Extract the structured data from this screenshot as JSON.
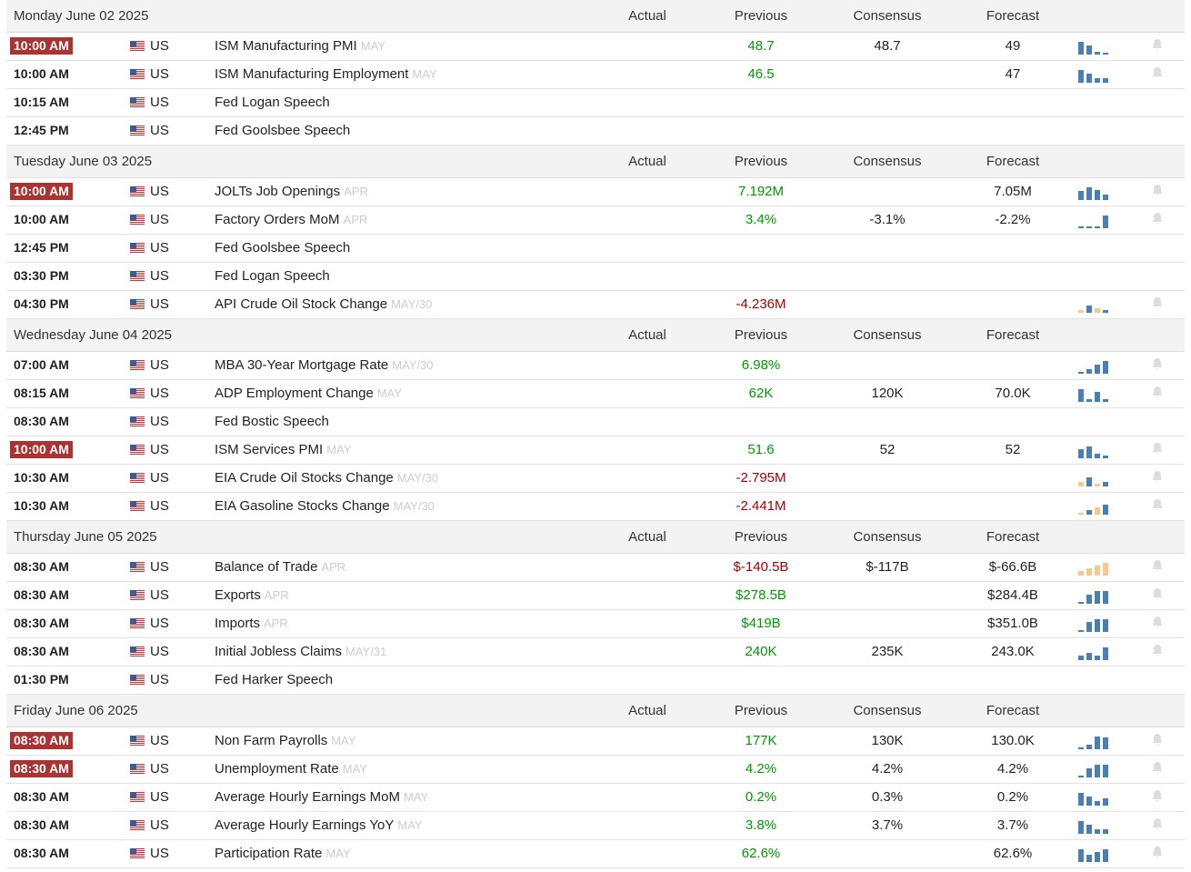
{
  "columns": {
    "actual": "Actual",
    "previous": "Previous",
    "consensus": "Consensus",
    "forecast": "Forecast"
  },
  "colors": {
    "highlight_time": "#a33333",
    "positive": "#009900",
    "negative": "#aa0000",
    "spark_blue": "#4a7fb5",
    "spark_orange": "#f5c98a"
  },
  "days": [
    {
      "date": "Monday June 02 2025",
      "events": [
        {
          "time": "10:00 AM",
          "hl": true,
          "country": "US",
          "event": "ISM Manufacturing PMI",
          "ref": "MAY",
          "actual": "",
          "previous": "48.7",
          "prev_class": "pos",
          "consensus": "48.7",
          "forecast": "49",
          "spark": "blue",
          "bars": [
            0.9,
            0.6,
            0.2,
            0.1
          ],
          "bell": true
        },
        {
          "time": "10:00 AM",
          "hl": false,
          "country": "US",
          "event": "ISM Manufacturing Employment",
          "ref": "MAY",
          "actual": "",
          "previous": "46.5",
          "prev_class": "pos",
          "consensus": "",
          "forecast": "47",
          "spark": "blue",
          "bars": [
            0.9,
            0.6,
            0.3,
            0.3
          ],
          "bell": true
        },
        {
          "time": "10:15 AM",
          "hl": false,
          "country": "US",
          "event": "Fed Logan Speech",
          "ref": "",
          "actual": "",
          "previous": "",
          "prev_class": "",
          "consensus": "",
          "forecast": "",
          "spark": "",
          "bars": [],
          "bell": false
        },
        {
          "time": "12:45 PM",
          "hl": false,
          "country": "US",
          "event": "Fed Goolsbee Speech",
          "ref": "",
          "actual": "",
          "previous": "",
          "prev_class": "",
          "consensus": "",
          "forecast": "",
          "spark": "",
          "bars": [],
          "bell": false
        }
      ]
    },
    {
      "date": "Tuesday June 03 2025",
      "events": [
        {
          "time": "10:00 AM",
          "hl": true,
          "country": "US",
          "event": "JOLTs Job Openings",
          "ref": "APR",
          "actual": "",
          "previous": "7.192M",
          "prev_class": "pos",
          "consensus": "",
          "forecast": "7.05M",
          "spark": "blue",
          "bars": [
            0.6,
            0.9,
            0.7,
            0.4
          ],
          "bell": true
        },
        {
          "time": "10:00 AM",
          "hl": false,
          "country": "US",
          "event": "Factory Orders MoM",
          "ref": "APR",
          "actual": "",
          "previous": "3.4%",
          "prev_class": "pos",
          "consensus": "-3.1%",
          "forecast": "-2.2%",
          "spark": "blue",
          "bars": [
            0.1,
            0.1,
            0.1,
            0.9
          ],
          "bell": true
        },
        {
          "time": "12:45 PM",
          "hl": false,
          "country": "US",
          "event": "Fed Goolsbee Speech",
          "ref": "",
          "actual": "",
          "previous": "",
          "prev_class": "",
          "consensus": "",
          "forecast": "",
          "spark": "",
          "bars": [],
          "bell": false
        },
        {
          "time": "03:30 PM",
          "hl": false,
          "country": "US",
          "event": "Fed Logan Speech",
          "ref": "",
          "actual": "",
          "previous": "",
          "prev_class": "",
          "consensus": "",
          "forecast": "",
          "spark": "",
          "bars": [],
          "bell": false
        },
        {
          "time": "04:30 PM",
          "hl": false,
          "country": "US",
          "event": "API Crude Oil Stock Change",
          "ref": "MAY/30",
          "actual": "",
          "previous": "-4.236M",
          "prev_class": "neg",
          "consensus": "",
          "forecast": "",
          "spark": "mixed",
          "bars": [
            0.2,
            0.5,
            0.3,
            0.2
          ],
          "bell": true
        }
      ]
    },
    {
      "date": "Wednesday June 04 2025",
      "events": [
        {
          "time": "07:00 AM",
          "hl": false,
          "country": "US",
          "event": "MBA 30-Year Mortgage Rate",
          "ref": "MAY/30",
          "actual": "",
          "previous": "6.98%",
          "prev_class": "pos",
          "consensus": "",
          "forecast": "",
          "spark": "blue",
          "bars": [
            0.1,
            0.3,
            0.6,
            0.9
          ],
          "bell": true
        },
        {
          "time": "08:15 AM",
          "hl": false,
          "country": "US",
          "event": "ADP Employment Change",
          "ref": "MAY",
          "actual": "",
          "previous": "62K",
          "prev_class": "pos",
          "consensus": "120K",
          "forecast": "70.0K",
          "spark": "blue",
          "bars": [
            0.9,
            0.2,
            0.7,
            0.2
          ],
          "bell": true
        },
        {
          "time": "08:30 AM",
          "hl": false,
          "country": "US",
          "event": "Fed Bostic Speech",
          "ref": "",
          "actual": "",
          "previous": "",
          "prev_class": "",
          "consensus": "",
          "forecast": "",
          "spark": "",
          "bars": [],
          "bell": false
        },
        {
          "time": "10:00 AM",
          "hl": true,
          "country": "US",
          "event": "ISM Services PMI",
          "ref": "MAY",
          "actual": "",
          "previous": "51.6",
          "prev_class": "pos",
          "consensus": "52",
          "forecast": "52",
          "spark": "blue",
          "bars": [
            0.6,
            0.8,
            0.3,
            0.2
          ],
          "bell": true
        },
        {
          "time": "10:30 AM",
          "hl": false,
          "country": "US",
          "event": "EIA Crude Oil Stocks Change",
          "ref": "MAY/30",
          "actual": "",
          "previous": "-2.795M",
          "prev_class": "neg",
          "consensus": "",
          "forecast": "",
          "spark": "mixed",
          "bars": [
            0.3,
            0.6,
            0.2,
            0.3
          ],
          "bell": true
        },
        {
          "time": "10:30 AM",
          "hl": false,
          "country": "US",
          "event": "EIA Gasoline Stocks Change",
          "ref": "MAY/30",
          "actual": "",
          "previous": "-2.441M",
          "prev_class": "neg",
          "consensus": "",
          "forecast": "",
          "spark": "mixed",
          "bars": [
            0.1,
            0.3,
            0.5,
            0.7
          ],
          "bell": true
        }
      ]
    },
    {
      "date": "Thursday June 05 2025",
      "events": [
        {
          "time": "08:30 AM",
          "hl": false,
          "country": "US",
          "event": "Balance of Trade",
          "ref": "APR",
          "actual": "",
          "previous": "$-140.5B",
          "prev_class": "neg",
          "consensus": "$-117B",
          "forecast": "$-66.6B",
          "spark": "orange",
          "bars": [
            0.3,
            0.5,
            0.7,
            0.9
          ],
          "bell": true
        },
        {
          "time": "08:30 AM",
          "hl": false,
          "country": "US",
          "event": "Exports",
          "ref": "APR",
          "actual": "",
          "previous": "$278.5B",
          "prev_class": "pos",
          "consensus": "",
          "forecast": "$284.4B",
          "spark": "blue",
          "bars": [
            0.1,
            0.6,
            0.9,
            0.9
          ],
          "bell": true
        },
        {
          "time": "08:30 AM",
          "hl": false,
          "country": "US",
          "event": "Imports",
          "ref": "APR",
          "actual": "",
          "previous": "$419B",
          "prev_class": "pos",
          "consensus": "",
          "forecast": "$351.0B",
          "spark": "blue",
          "bars": [
            0.1,
            0.7,
            0.9,
            0.9
          ],
          "bell": true
        },
        {
          "time": "08:30 AM",
          "hl": false,
          "country": "US",
          "event": "Initial Jobless Claims",
          "ref": "MAY/31",
          "actual": "",
          "previous": "240K",
          "prev_class": "pos",
          "consensus": "235K",
          "forecast": "243.0K",
          "spark": "blue",
          "bars": [
            0.3,
            0.5,
            0.3,
            0.9
          ],
          "bell": true
        },
        {
          "time": "01:30 PM",
          "hl": false,
          "country": "US",
          "event": "Fed Harker Speech",
          "ref": "",
          "actual": "",
          "previous": "",
          "prev_class": "",
          "consensus": "",
          "forecast": "",
          "spark": "",
          "bars": [],
          "bell": false
        }
      ]
    },
    {
      "date": "Friday June 06 2025",
      "events": [
        {
          "time": "08:30 AM",
          "hl": true,
          "country": "US",
          "event": "Non Farm Payrolls",
          "ref": "MAY",
          "actual": "",
          "previous": "177K",
          "prev_class": "pos",
          "consensus": "130K",
          "forecast": "130.0K",
          "spark": "blue",
          "bars": [
            0.1,
            0.3,
            0.9,
            0.8
          ],
          "bell": true
        },
        {
          "time": "08:30 AM",
          "hl": true,
          "country": "US",
          "event": "Unemployment Rate",
          "ref": "MAY",
          "actual": "",
          "previous": "4.2%",
          "prev_class": "pos",
          "consensus": "4.2%",
          "forecast": "4.2%",
          "spark": "blue",
          "bars": [
            0.1,
            0.6,
            0.9,
            0.9
          ],
          "bell": true
        },
        {
          "time": "08:30 AM",
          "hl": false,
          "country": "US",
          "event": "Average Hourly Earnings MoM",
          "ref": "MAY",
          "actual": "",
          "previous": "0.2%",
          "prev_class": "pos",
          "consensus": "0.3%",
          "forecast": "0.2%",
          "spark": "blue",
          "bars": [
            0.9,
            0.6,
            0.3,
            0.5
          ],
          "bell": true
        },
        {
          "time": "08:30 AM",
          "hl": false,
          "country": "US",
          "event": "Average Hourly Earnings YoY",
          "ref": "MAY",
          "actual": "",
          "previous": "3.8%",
          "prev_class": "pos",
          "consensus": "3.7%",
          "forecast": "3.7%",
          "spark": "blue",
          "bars": [
            0.9,
            0.6,
            0.3,
            0.3
          ],
          "bell": true
        },
        {
          "time": "08:30 AM",
          "hl": false,
          "country": "US",
          "event": "Participation Rate",
          "ref": "MAY",
          "actual": "",
          "previous": "62.6%",
          "prev_class": "pos",
          "consensus": "",
          "forecast": "62.6%",
          "spark": "blue",
          "bars": [
            0.9,
            0.5,
            0.7,
            0.9
          ],
          "bell": true
        }
      ]
    }
  ]
}
